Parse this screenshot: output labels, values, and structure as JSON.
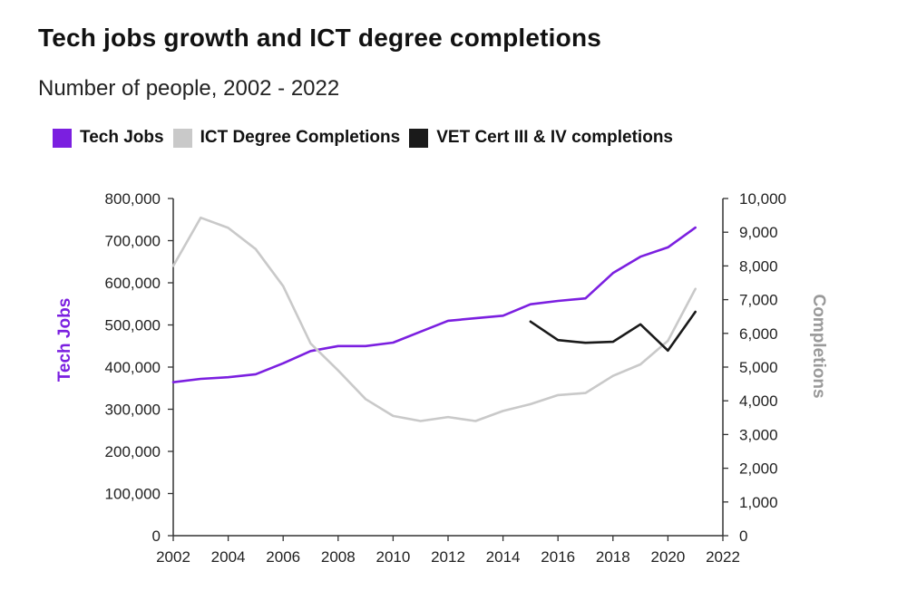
{
  "header": {
    "title": "Tech jobs growth and ICT degree completions",
    "subtitle": "Number of people, 2002 - 2022"
  },
  "legend": [
    {
      "label": "Tech Jobs",
      "color": "#7b1fe0"
    },
    {
      "label": "ICT Degree Completions",
      "color": "#c9c9c9"
    },
    {
      "label": "VET Cert III & IV completions",
      "color": "#1a1a1a"
    }
  ],
  "chart_data": {
    "type": "line",
    "title": "Tech jobs growth and ICT degree completions",
    "subtitle": "Number of people, 2002 - 2022",
    "legend_position": "top-left",
    "grid": false,
    "xlim": [
      2002,
      2022
    ],
    "x_ticks": [
      "2002",
      "2004",
      "2006",
      "2008",
      "2010",
      "2012",
      "2014",
      "2016",
      "2018",
      "2020",
      "2022"
    ],
    "y_left": {
      "label": "Tech Jobs",
      "label_color": "#7b1fe0",
      "range": [
        0,
        800000
      ],
      "ticks": [
        "0",
        "100,000",
        "200,000",
        "300,000",
        "400,000",
        "500,000",
        "600,000",
        "700,000",
        "800,000"
      ]
    },
    "y_right": {
      "label": "Completions",
      "label_color": "#999999",
      "range": [
        0,
        10000
      ],
      "ticks": [
        "0",
        "1,000",
        "2,000",
        "3,000",
        "4,000",
        "5,000",
        "6,000",
        "7,000",
        "8,000",
        "9,000",
        "10,000"
      ]
    },
    "series": [
      {
        "name": "Tech Jobs",
        "axis": "left",
        "color": "#7b1fe0",
        "x": [
          2002,
          2003,
          2004,
          2005,
          2006,
          2007,
          2008,
          2009,
          2010,
          2011,
          2012,
          2013,
          2014,
          2015,
          2016,
          2017,
          2018,
          2019,
          2020,
          2021
        ],
        "values": [
          364000,
          372000,
          376000,
          383000,
          409000,
          438000,
          450000,
          450000,
          458000,
          484000,
          510000,
          516000,
          522000,
          549000,
          557000,
          563000,
          623000,
          662000,
          684000,
          731000
        ]
      },
      {
        "name": "ICT Degree Completions",
        "axis": "right",
        "color": "#c9c9c9",
        "x": [
          2002,
          2003,
          2004,
          2005,
          2006,
          2007,
          2008,
          2009,
          2010,
          2011,
          2012,
          2013,
          2014,
          2015,
          2016,
          2017,
          2018,
          2019,
          2020,
          2021
        ],
        "values": [
          8000,
          9430,
          9130,
          8500,
          7400,
          5700,
          4900,
          4050,
          3550,
          3400,
          3520,
          3400,
          3700,
          3900,
          4170,
          4230,
          4740,
          5080,
          5780,
          7320
        ]
      },
      {
        "name": "VET Cert III & IV completions",
        "axis": "right",
        "color": "#1a1a1a",
        "x": [
          2015,
          2016,
          2017,
          2018,
          2019,
          2020,
          2021
        ],
        "values": [
          6350,
          5800,
          5720,
          5750,
          6270,
          5490,
          6640
        ]
      }
    ]
  }
}
